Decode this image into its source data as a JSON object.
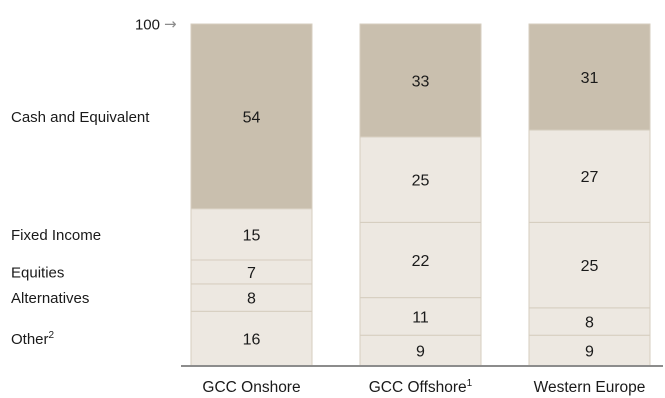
{
  "chart_data": {
    "type": "bar",
    "stacked": true,
    "categories": [
      "GCC Onshore",
      "GCC Offshore",
      "Western Europe"
    ],
    "category_footnotes": [
      "",
      "1",
      ""
    ],
    "stack_order_bottom_to_top": [
      "Other",
      "Alternatives",
      "Equities",
      "Fixed Income",
      "Cash and Equivalent"
    ],
    "bars": [
      {
        "category": "GCC Onshore",
        "segments": [
          {
            "values": [
              16
            ],
            "labels": [
              "Other"
            ]
          },
          {
            "values": [
              8
            ],
            "labels": [
              "Alternatives"
            ]
          },
          {
            "values": [
              7
            ],
            "labels": [
              "Equities"
            ]
          },
          {
            "values": [
              15
            ],
            "labels": [
              "Fixed Income"
            ]
          },
          {
            "values": [
              54
            ],
            "labels": [
              "Cash and Equivalent"
            ]
          }
        ]
      },
      {
        "category": "GCC Offshore",
        "segments": [
          {
            "values": [
              9
            ]
          },
          {
            "values": [
              11
            ]
          },
          {
            "values": [
              22
            ]
          },
          {
            "values": [
              25
            ]
          },
          {
            "values": [
              33
            ]
          }
        ]
      },
      {
        "category": "Western Europe",
        "segments": [
          {
            "values": [
              9
            ]
          },
          {
            "values": [
              8
            ]
          },
          {
            "values": [
              25
            ]
          },
          {
            "values": [
              27
            ]
          },
          {
            "values": [
              31
            ]
          }
        ]
      }
    ],
    "segment_values": {
      "GCC Onshore": [
        16,
        8,
        7,
        15,
        54
      ],
      "GCC Offshore": [
        9,
        11,
        22,
        25,
        33
      ],
      "Western Europe": [
        9,
        8,
        25,
        27,
        31
      ]
    },
    "row_labels": [
      {
        "text": "Cash and Equivalent",
        "footnote": ""
      },
      {
        "text": "Fixed Income",
        "footnote": ""
      },
      {
        "text": "Equities",
        "footnote": ""
      },
      {
        "text": "Alternatives",
        "footnote": ""
      },
      {
        "text": "Other",
        "footnote": "2"
      }
    ],
    "total_marker": {
      "value": 100,
      "text": "100",
      "arrow": "→"
    },
    "ylim": [
      0,
      100
    ],
    "grid": false,
    "legend": "none",
    "colors": {
      "top_segment": "#c9bfae",
      "lower_segments": "#ede8e1",
      "segment_divider": "#d6cebf",
      "baseline": "#8c8c8c",
      "marker": "#8c8c8c"
    }
  }
}
